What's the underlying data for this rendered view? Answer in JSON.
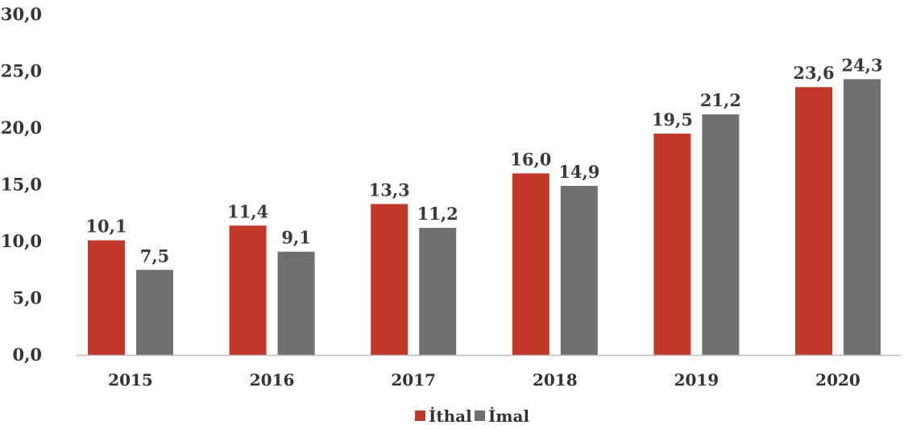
{
  "chart_data": {
    "type": "bar",
    "categories": [
      "2015",
      "2016",
      "2017",
      "2018",
      "2019",
      "2020"
    ],
    "series": [
      {
        "name": "İthal",
        "color": "#c0392b",
        "values": [
          10.1,
          11.4,
          13.3,
          16.0,
          19.5,
          23.6
        ],
        "labels": [
          "10,1",
          "11,4",
          "13,3",
          "16,0",
          "19,5",
          "23,6"
        ]
      },
      {
        "name": "İmal",
        "color": "#707070",
        "values": [
          7.5,
          9.1,
          11.2,
          14.9,
          21.2,
          24.3
        ],
        "labels": [
          "7,5",
          "9,1",
          "11,2",
          "14,9",
          "21,2",
          "24,3"
        ]
      }
    ],
    "ylim": [
      0,
      30
    ],
    "yticks": [
      0,
      5,
      10,
      15,
      20,
      25,
      30
    ],
    "ytick_labels": [
      "0,0",
      "5,0",
      "10,0",
      "15,0",
      "20,0",
      "25,0",
      "30,0"
    ],
    "grid": false,
    "legend_position": "bottom-center",
    "title": "",
    "xlabel": "",
    "ylabel": ""
  }
}
